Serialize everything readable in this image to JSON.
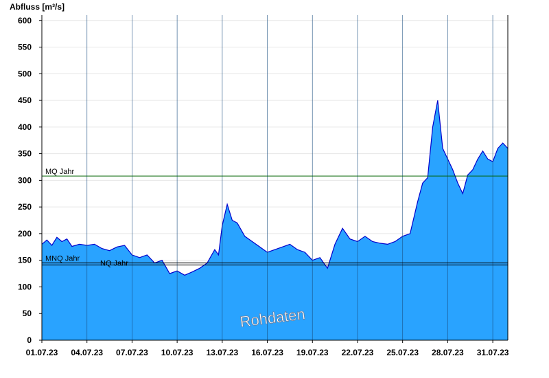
{
  "chart_data": {
    "type": "area",
    "ylabel": "Abfluss [m³/s]",
    "ylim": [
      0,
      610
    ],
    "yticks": [
      0,
      50,
      100,
      150,
      200,
      250,
      300,
      350,
      400,
      450,
      500,
      550,
      600
    ],
    "xlim": [
      "2023-07-01",
      "2023-08-01"
    ],
    "xticks": [
      "01.07.23",
      "04.07.23",
      "07.07.23",
      "10.07.23",
      "13.07.23",
      "16.07.23",
      "19.07.23",
      "22.07.23",
      "25.07.23",
      "28.07.23",
      "31.07.23"
    ],
    "grid": true,
    "fill_color": "#29a3ff",
    "line_color": "#0000cc",
    "reference_lines": [
      {
        "label": "MQ Jahr",
        "value": 308,
        "color": "#006400"
      },
      {
        "label": "MNQ Jahr",
        "value": 145,
        "color": "#000000"
      },
      {
        "label": "NQ Jahr",
        "value": 141,
        "color": "#000000"
      }
    ],
    "watermark": "Rohdaten",
    "series": [
      {
        "x": [
          "2023-07-01 00:00",
          "2023-07-01 08:00",
          "2023-07-01 16:00",
          "2023-07-02 00:00",
          "2023-07-02 08:00",
          "2023-07-02 16:00",
          "2023-07-03 00:00",
          "2023-07-03 12:00",
          "2023-07-04 00:00",
          "2023-07-04 12:00",
          "2023-07-05 00:00",
          "2023-07-05 12:00",
          "2023-07-06 00:00",
          "2023-07-06 12:00",
          "2023-07-07 00:00",
          "2023-07-07 12:00",
          "2023-07-08 00:00",
          "2023-07-08 12:00",
          "2023-07-09 00:00",
          "2023-07-09 12:00",
          "2023-07-10 00:00",
          "2023-07-10 12:00",
          "2023-07-11 00:00",
          "2023-07-11 12:00",
          "2023-07-12 00:00",
          "2023-07-12 12:00",
          "2023-07-12 18:00",
          "2023-07-13 00:00",
          "2023-07-13 08:00",
          "2023-07-13 16:00",
          "2023-07-14 00:00",
          "2023-07-14 12:00",
          "2023-07-15 00:00",
          "2023-07-15 12:00",
          "2023-07-16 00:00",
          "2023-07-16 12:00",
          "2023-07-17 00:00",
          "2023-07-17 12:00",
          "2023-07-18 00:00",
          "2023-07-18 12:00",
          "2023-07-19 00:00",
          "2023-07-19 12:00",
          "2023-07-20 00:00",
          "2023-07-20 12:00",
          "2023-07-21 00:00",
          "2023-07-21 12:00",
          "2023-07-22 00:00",
          "2023-07-22 12:00",
          "2023-07-23 00:00",
          "2023-07-23 12:00",
          "2023-07-24 00:00",
          "2023-07-24 12:00",
          "2023-07-25 00:00",
          "2023-07-25 12:00",
          "2023-07-26 00:00",
          "2023-07-26 08:00",
          "2023-07-26 16:00",
          "2023-07-27 00:00",
          "2023-07-27 08:00",
          "2023-07-27 16:00",
          "2023-07-28 00:00",
          "2023-07-28 08:00",
          "2023-07-28 16:00",
          "2023-07-29 00:00",
          "2023-07-29 08:00",
          "2023-07-29 16:00",
          "2023-07-30 00:00",
          "2023-07-30 08:00",
          "2023-07-30 16:00",
          "2023-07-31 00:00",
          "2023-07-31 08:00",
          "2023-07-31 16:00",
          "2023-08-01 00:00"
        ],
        "values": [
          180,
          188,
          178,
          193,
          185,
          190,
          176,
          180,
          178,
          180,
          172,
          168,
          175,
          178,
          160,
          155,
          160,
          145,
          150,
          125,
          130,
          122,
          128,
          135,
          145,
          170,
          160,
          215,
          255,
          225,
          220,
          195,
          185,
          175,
          165,
          170,
          175,
          180,
          170,
          165,
          150,
          155,
          135,
          180,
          210,
          190,
          185,
          195,
          185,
          182,
          180,
          185,
          195,
          200,
          260,
          295,
          305,
          400,
          450,
          360,
          340,
          320,
          295,
          275,
          310,
          320,
          340,
          355,
          340,
          335,
          360,
          370,
          360
        ]
      }
    ]
  }
}
